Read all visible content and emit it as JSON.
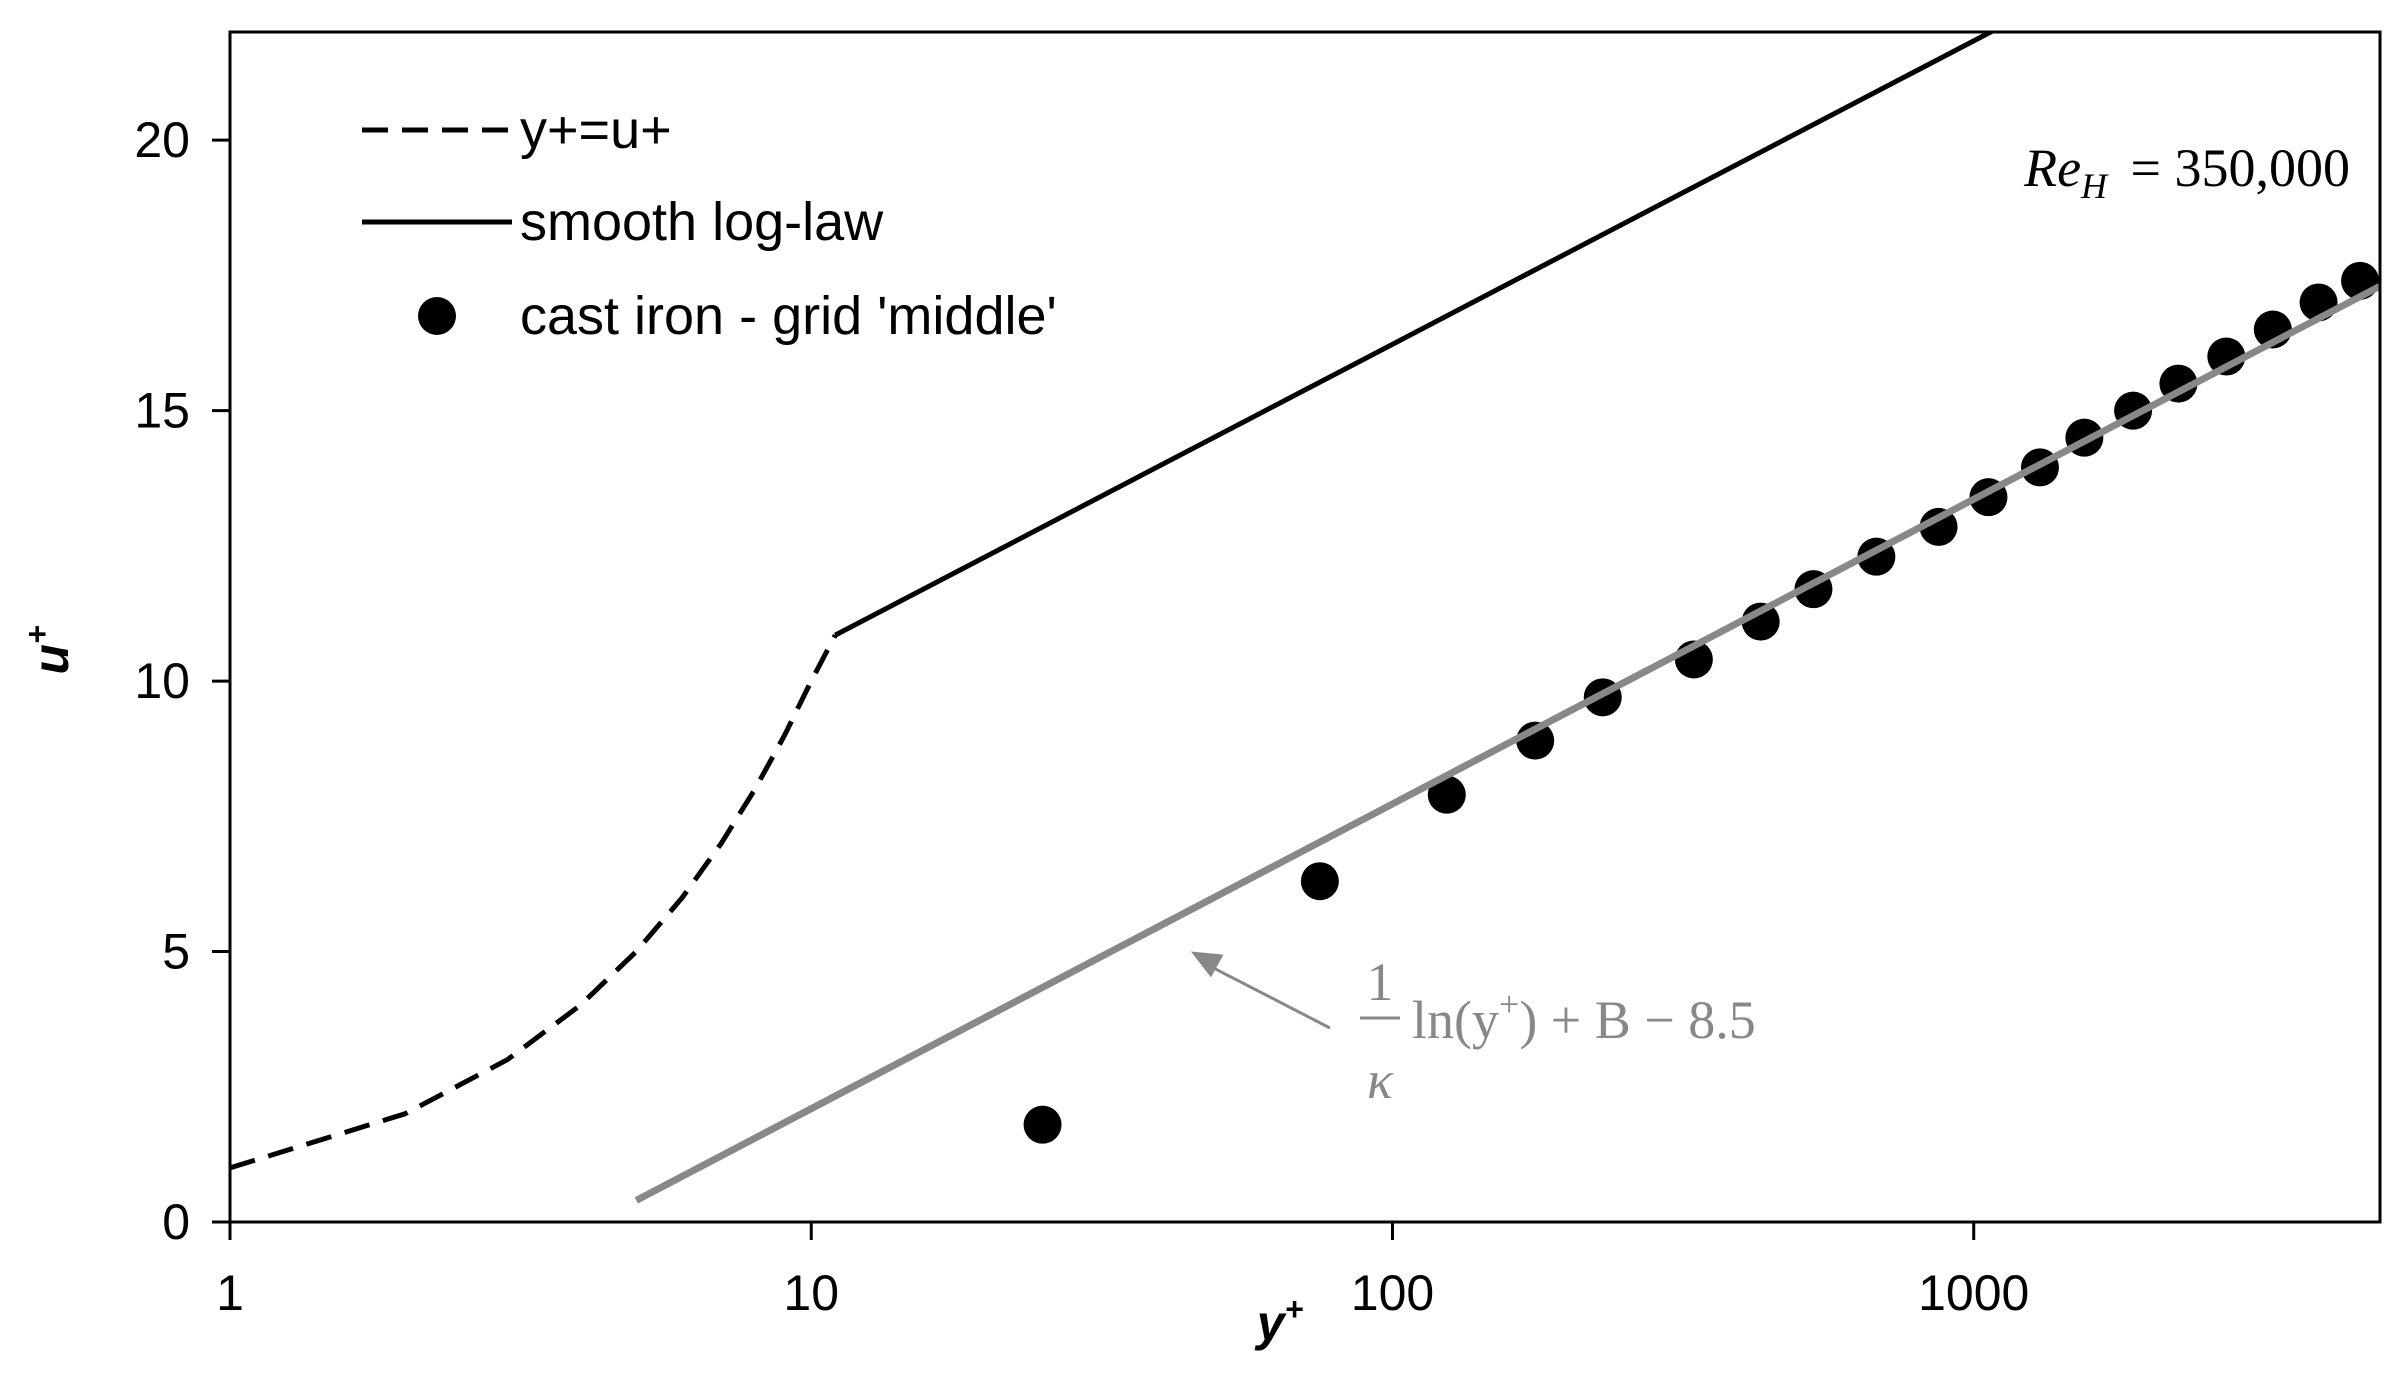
{
  "chart_data": {
    "type": "line",
    "x_scale": "log",
    "xlabel": "y+",
    "ylabel": "u+",
    "xlim": [
      1,
      5000
    ],
    "ylim": [
      0,
      22
    ],
    "x_ticks": [
      1,
      10,
      100,
      1000
    ],
    "x_tick_labels": [
      "1",
      "10",
      "100",
      "1000"
    ],
    "y_ticks": [
      0,
      5,
      10,
      15,
      20
    ],
    "y_tick_labels": [
      "0",
      "5",
      "10",
      "15",
      "20"
    ],
    "grid": false,
    "legend_position": "top-left",
    "series": [
      {
        "name": "y+=u+",
        "style": "dashed",
        "color": "#000000",
        "points": [
          [
            1,
            1
          ],
          [
            2,
            2
          ],
          [
            3,
            3
          ],
          [
            4,
            4
          ],
          [
            5,
            5
          ],
          [
            6,
            6
          ],
          [
            7,
            7
          ],
          [
            8,
            8
          ],
          [
            9,
            9
          ],
          [
            10,
            10
          ],
          [
            11,
            10.85
          ]
        ]
      },
      {
        "name": "smooth log-law",
        "style": "solid",
        "color": "#000000",
        "points": [
          [
            11,
            10.85
          ],
          [
            4500,
            25.5
          ]
        ]
      },
      {
        "name": "cast iron - grid 'middle'",
        "style": "markers",
        "color": "#000000",
        "points": [
          [
            25,
            1.8
          ],
          [
            75,
            6.3
          ],
          [
            124,
            7.9
          ],
          [
            176,
            8.9
          ],
          [
            230,
            9.7
          ],
          [
            330,
            10.4
          ],
          [
            430,
            11.1
          ],
          [
            530,
            11.7
          ],
          [
            680,
            12.3
          ],
          [
            870,
            12.85
          ],
          [
            1060,
            13.4
          ],
          [
            1300,
            13.95
          ],
          [
            1550,
            14.5
          ],
          [
            1880,
            15.0
          ],
          [
            2250,
            15.5
          ],
          [
            2720,
            16.0
          ],
          [
            3270,
            16.5
          ],
          [
            3920,
            17.0
          ],
          [
            4620,
            17.4
          ]
        ]
      },
      {
        "name": "",
        "style": "solid",
        "color": "#888888",
        "points": [
          [
            5,
            0.4
          ],
          [
            5000,
            17.3
          ]
        ]
      }
    ],
    "annotations": {
      "reynolds": {
        "lhs": "Re",
        "sub": "H",
        "rhs": "= 350,000"
      },
      "fit_equation": {
        "numerator": "1",
        "denominator": "κ",
        "body_pre": "ln(y",
        "body_sup": "+",
        "body_post": ") + B − 8.5",
        "points_to": [
          45,
          5.0
        ]
      }
    }
  }
}
